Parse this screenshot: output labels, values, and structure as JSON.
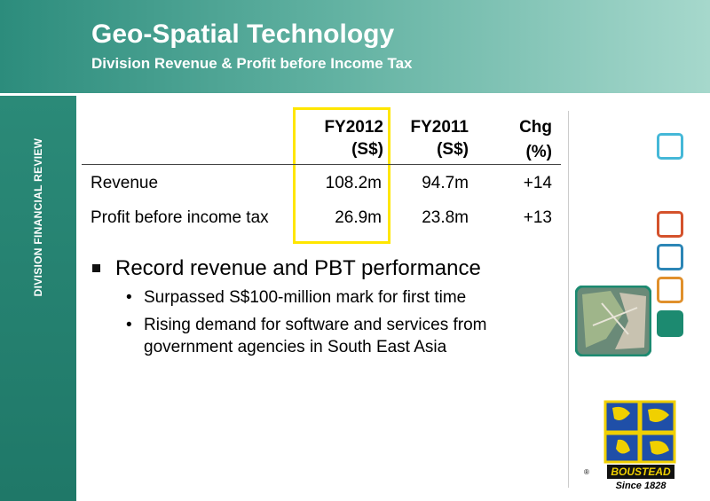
{
  "header": {
    "title": "Geo-Spatial Technology",
    "subtitle": "Division Revenue & Profit before Income Tax"
  },
  "sidebar": {
    "label": "DIVISION FINANCIAL REVIEW"
  },
  "table": {
    "columns": [
      [
        "FY2012",
        "(S$)"
      ],
      [
        "FY2011",
        "(S$)"
      ],
      [
        "Chg",
        "(%)"
      ]
    ],
    "rows": [
      [
        "Revenue",
        "108.2m",
        "94.7m",
        "+14"
      ],
      [
        "Profit before income tax",
        "26.9m",
        "23.8m",
        "+13"
      ]
    ]
  },
  "bullets": [
    {
      "text": "Record revenue and PBT performance",
      "sub": [
        "Surpassed S$100-million mark for first time",
        "Rising demand for software and services from government agencies in South East Asia"
      ]
    }
  ],
  "logo": {
    "mark": "®",
    "name": "BOUSTEAD",
    "tagline": "Since 1828"
  }
}
